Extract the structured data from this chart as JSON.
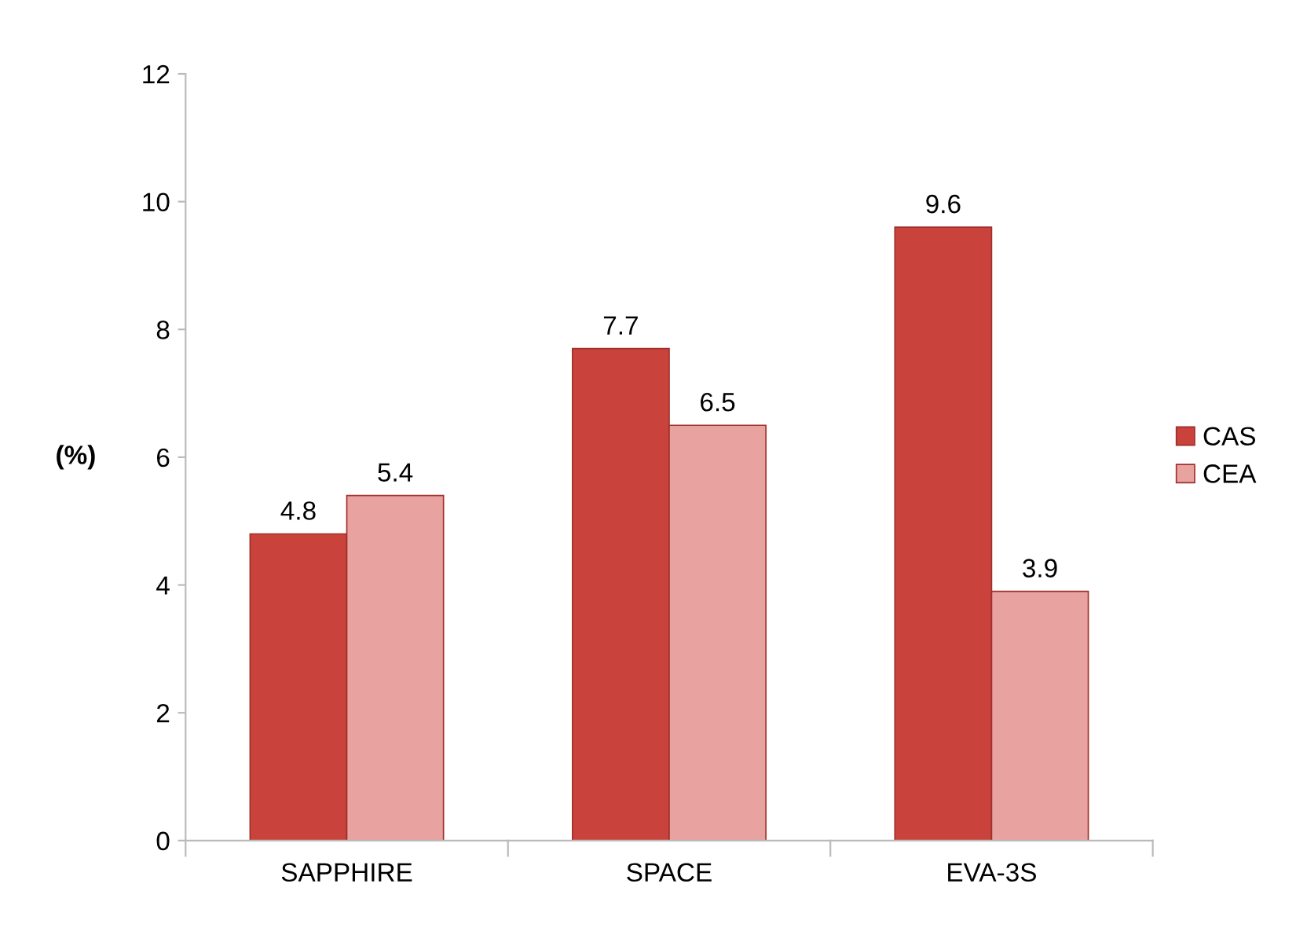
{
  "chart_data": {
    "type": "bar",
    "ylabel": "(%)",
    "categories": [
      "SAPPHIRE",
      "SPACE",
      "EVA-3S"
    ],
    "series": [
      {
        "name": "CAS",
        "color": "#c9433c",
        "values": [
          4.8,
          7.7,
          9.6
        ]
      },
      {
        "name": "CEA",
        "color": "#e8a2a0",
        "values": [
          5.4,
          6.5,
          3.9
        ]
      }
    ],
    "ylim": [
      0,
      12
    ],
    "yticks": [
      0,
      2,
      4,
      6,
      8,
      10,
      12
    ],
    "grid": false,
    "legend": "right",
    "data_labels": true
  }
}
